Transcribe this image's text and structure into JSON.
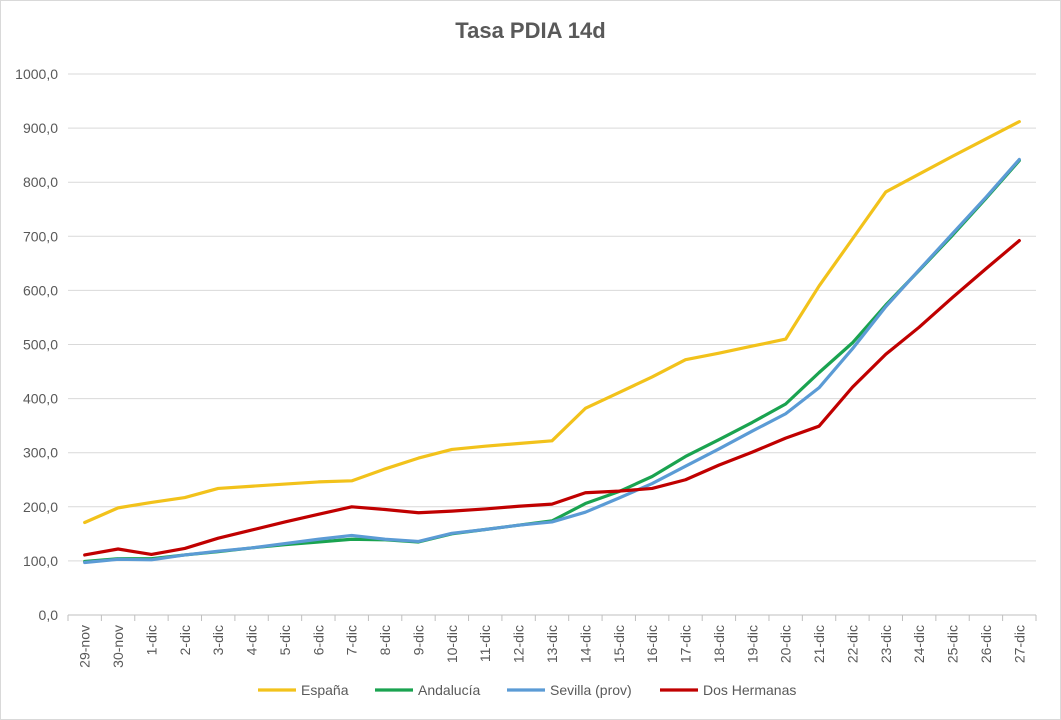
{
  "chart_data": {
    "type": "line",
    "title": "Tasa PDIA 14d",
    "xlabel": "",
    "ylabel": "",
    "ylim": [
      0,
      1000
    ],
    "ytick_step": 100,
    "ytick_labels": [
      "0,0",
      "100,0",
      "200,0",
      "300,0",
      "400,0",
      "500,0",
      "600,0",
      "700,0",
      "800,0",
      "900,0",
      "1000,0"
    ],
    "grid": true,
    "legend_position": "bottom",
    "categories": [
      "29-nov",
      "30-nov",
      "1-dic",
      "2-dic",
      "3-dic",
      "4-dic",
      "5-dic",
      "6-dic",
      "7-dic",
      "8-dic",
      "9-dic",
      "10-dic",
      "11-dic",
      "12-dic",
      "13-dic",
      "14-dic",
      "15-dic",
      "16-dic",
      "17-dic",
      "18-dic",
      "19-dic",
      "20-dic",
      "21-dic",
      "22-dic",
      "23-dic",
      "24-dic",
      "25-dic",
      "26-dic",
      "27-dic"
    ],
    "series": [
      {
        "name": "España",
        "color": "#f2c21b",
        "values": [
          171,
          198,
          208,
          217,
          234,
          238,
          242,
          246,
          248,
          270,
          290,
          306,
          312,
          317,
          322,
          382,
          411,
          440,
          472,
          484,
          497,
          510,
          608,
          695,
          782,
          815,
          848,
          880,
          912
        ]
      },
      {
        "name": "Andalucía",
        "color": "#1aa350",
        "values": [
          99,
          104,
          104,
          111,
          117,
          124,
          130,
          135,
          140,
          139,
          135,
          150,
          158,
          166,
          174,
          206,
          228,
          256,
          293,
          324,
          356,
          390,
          448,
          503,
          573,
          637,
          702,
          770,
          840
        ]
      },
      {
        "name": "Sevilla (prov)",
        "color": "#5b9bd5",
        "values": [
          97,
          103,
          102,
          111,
          118,
          124,
          132,
          140,
          147,
          140,
          136,
          151,
          158,
          166,
          172,
          190,
          216,
          243,
          275,
          307,
          340,
          372,
          420,
          492,
          570,
          638,
          705,
          772,
          842
        ]
      },
      {
        "name": "Dos Hermanas",
        "color": "#c00000",
        "values": [
          111,
          122,
          112,
          123,
          142,
          157,
          172,
          186,
          200,
          195,
          189,
          192,
          196,
          201,
          205,
          226,
          229,
          234,
          250,
          277,
          301,
          327,
          349,
          421,
          482,
          532,
          587,
          640,
          692
        ]
      }
    ]
  }
}
